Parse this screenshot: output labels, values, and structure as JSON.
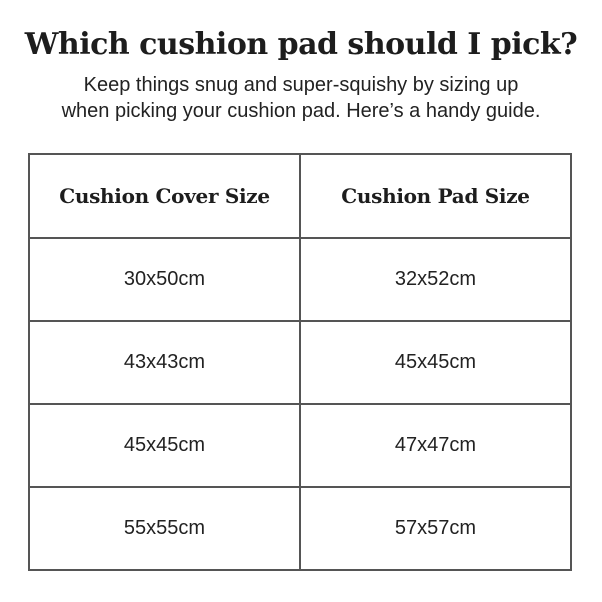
{
  "page": {
    "title": "Which cushion pad should I pick?",
    "subtitle_line1": "Keep things snug and super-squishy by sizing up",
    "subtitle_line2": "when picking your cushion pad. Here’s a handy guide."
  },
  "table": {
    "headers": [
      "Cushion Cover Size",
      "Cushion Pad Size"
    ],
    "rows": [
      [
        "30x50cm",
        "32x52cm"
      ],
      [
        "43x43cm",
        "45x45cm"
      ],
      [
        "45x45cm",
        "47x47cm"
      ],
      [
        "55x55cm",
        "57x57cm"
      ]
    ]
  },
  "colors": {
    "background": "#ffffff",
    "text": "#1d1d1d",
    "border": "#555555"
  }
}
